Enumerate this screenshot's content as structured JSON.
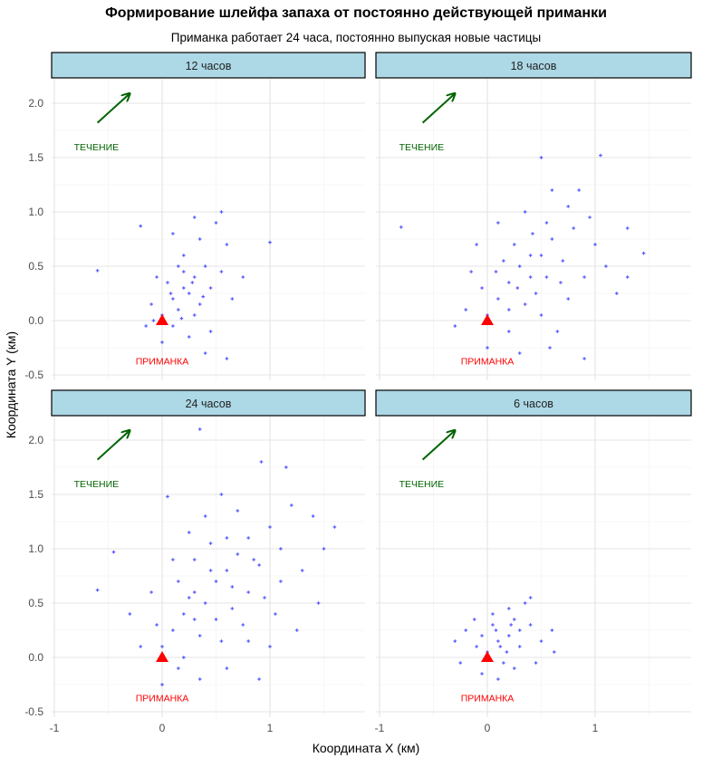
{
  "chart_data": {
    "type": "scatter",
    "title": "Формирование шлейфа запаха от постоянно действующей приманки",
    "subtitle": "Приманка работает 24 часа, постоянно выпуская новые частицы",
    "xlabel": "Координата X (км)",
    "ylabel": "Координата Y (км)",
    "xlim": [
      -1.02,
      1.88
    ],
    "ylim": [
      -0.55,
      2.225
    ],
    "x_ticks": [
      {
        "v": -1,
        "label": "-1"
      },
      {
        "v": 0,
        "label": "0"
      },
      {
        "v": 1,
        "label": "1"
      }
    ],
    "y_ticks": [
      {
        "v": 2,
        "label": "2.0"
      },
      {
        "v": 1.5,
        "label": "1.5"
      },
      {
        "v": 1,
        "label": "1.0"
      },
      {
        "v": 0.5,
        "label": "0.5"
      },
      {
        "v": 0,
        "label": "0.0"
      },
      {
        "v": -0.5,
        "label": "-0.5"
      }
    ],
    "grid": true,
    "colors": {
      "points": "#0000ff",
      "bait": "#ff0000",
      "current": "#006400",
      "strip": "#add8e6"
    },
    "annotations": {
      "current_label": "ТЕЧЕНИЕ",
      "current_label_pos": [
        -0.61,
        1.6
      ],
      "current_arrow": {
        "from": [
          -0.6,
          1.82
        ],
        "to": [
          -0.3,
          2.09
        ]
      },
      "bait_label": "ПРИМАНКА",
      "bait_label_pos": [
        0,
        -0.37
      ],
      "bait_point": [
        0,
        0
      ]
    },
    "facets": [
      {
        "label": "12 часов",
        "points": [
          [
            0.0,
            0.05
          ],
          [
            0.1,
            0.2
          ],
          [
            0.2,
            0.3
          ],
          [
            0.15,
            0.1
          ],
          [
            0.3,
            0.4
          ],
          [
            0.25,
            0.25
          ],
          [
            0.05,
            0.35
          ],
          [
            -0.1,
            0.15
          ],
          [
            0.35,
            0.15
          ],
          [
            0.4,
            0.5
          ],
          [
            0.2,
            0.6
          ],
          [
            0.1,
            -0.05
          ],
          [
            0.3,
            0.05
          ],
          [
            0.45,
            0.3
          ],
          [
            0.55,
            0.45
          ],
          [
            0.6,
            0.7
          ],
          [
            0.5,
            0.9
          ],
          [
            0.35,
            0.75
          ],
          [
            0.15,
            0.5
          ],
          [
            -0.05,
            0.4
          ],
          [
            -0.15,
            -0.05
          ],
          [
            0.0,
            -0.2
          ],
          [
            0.25,
            -0.15
          ],
          [
            0.4,
            -0.3
          ],
          [
            0.65,
            0.2
          ],
          [
            0.75,
            0.4
          ],
          [
            1.0,
            0.72
          ],
          [
            -0.6,
            0.46
          ],
          [
            -0.2,
            0.87
          ],
          [
            0.55,
            1.0
          ],
          [
            0.3,
            0.95
          ],
          [
            0.1,
            0.8
          ],
          [
            0.45,
            -0.1
          ],
          [
            0.2,
            0.45
          ],
          [
            0.08,
            0.25
          ],
          [
            0.28,
            0.35
          ],
          [
            0.38,
            0.22
          ],
          [
            -0.08,
            0.0
          ],
          [
            0.18,
            0.02
          ],
          [
            0.6,
            -0.35
          ]
        ]
      },
      {
        "label": "18 часов",
        "points": [
          [
            0.0,
            0.05
          ],
          [
            0.1,
            0.2
          ],
          [
            0.2,
            0.35
          ],
          [
            0.3,
            0.5
          ],
          [
            0.4,
            0.4
          ],
          [
            0.5,
            0.6
          ],
          [
            0.6,
            0.75
          ],
          [
            0.45,
            0.25
          ],
          [
            0.35,
            0.15
          ],
          [
            0.55,
            0.9
          ],
          [
            0.7,
            0.55
          ],
          [
            0.8,
            0.85
          ],
          [
            0.25,
            0.7
          ],
          [
            0.15,
            0.55
          ],
          [
            -0.05,
            0.3
          ],
          [
            -0.2,
            0.1
          ],
          [
            -0.3,
            -0.05
          ],
          [
            0.0,
            -0.25
          ],
          [
            0.2,
            -0.1
          ],
          [
            0.5,
            0.05
          ],
          [
            0.75,
            0.2
          ],
          [
            0.9,
            0.4
          ],
          [
            1.0,
            0.7
          ],
          [
            1.1,
            0.5
          ],
          [
            1.3,
            0.85
          ],
          [
            1.45,
            0.62
          ],
          [
            0.6,
            1.2
          ],
          [
            0.5,
            1.5
          ],
          [
            1.05,
            1.52
          ],
          [
            0.75,
            1.05
          ],
          [
            0.35,
            1.0
          ],
          [
            0.1,
            0.9
          ],
          [
            -0.1,
            0.7
          ],
          [
            -0.8,
            0.86
          ],
          [
            0.65,
            -0.1
          ],
          [
            0.9,
            -0.35
          ],
          [
            1.2,
            0.25
          ],
          [
            0.4,
            0.6
          ],
          [
            0.28,
            0.3
          ],
          [
            0.55,
            0.4
          ],
          [
            0.42,
            0.8
          ],
          [
            0.08,
            0.45
          ],
          [
            0.68,
            0.35
          ],
          [
            0.2,
            0.1
          ],
          [
            -0.15,
            0.45
          ],
          [
            0.85,
            1.2
          ],
          [
            1.3,
            0.4
          ],
          [
            0.58,
            -0.25
          ],
          [
            0.3,
            -0.3
          ],
          [
            0.95,
            0.95
          ]
        ]
      },
      {
        "label": "24 часов",
        "points": [
          [
            0.0,
            0.1
          ],
          [
            0.1,
            0.25
          ],
          [
            0.2,
            0.4
          ],
          [
            0.3,
            0.6
          ],
          [
            0.4,
            0.5
          ],
          [
            0.5,
            0.7
          ],
          [
            0.6,
            0.8
          ],
          [
            0.7,
            0.95
          ],
          [
            0.8,
            1.1
          ],
          [
            0.9,
            0.85
          ],
          [
            1.0,
            1.2
          ],
          [
            1.1,
            1.0
          ],
          [
            1.2,
            1.4
          ],
          [
            1.4,
            1.3
          ],
          [
            1.6,
            1.2
          ],
          [
            0.35,
            0.2
          ],
          [
            0.5,
            0.35
          ],
          [
            0.65,
            0.45
          ],
          [
            0.8,
            0.6
          ],
          [
            0.95,
            0.55
          ],
          [
            1.1,
            0.7
          ],
          [
            1.3,
            0.8
          ],
          [
            0.2,
            0.0
          ],
          [
            0.35,
            -0.2
          ],
          [
            0.6,
            -0.1
          ],
          [
            0.8,
            0.15
          ],
          [
            0.0,
            -0.25
          ],
          [
            -0.2,
            0.1
          ],
          [
            -0.3,
            0.4
          ],
          [
            -0.45,
            0.97
          ],
          [
            -0.6,
            0.62
          ],
          [
            -0.1,
            0.6
          ],
          [
            0.1,
            0.9
          ],
          [
            0.25,
            1.15
          ],
          [
            0.05,
            1.48
          ],
          [
            0.55,
            1.5
          ],
          [
            0.35,
            2.1
          ],
          [
            0.92,
            1.8
          ],
          [
            1.15,
            1.75
          ],
          [
            0.7,
            1.35
          ],
          [
            0.45,
            1.05
          ],
          [
            0.15,
            0.7
          ],
          [
            0.3,
            0.35
          ],
          [
            0.45,
            0.8
          ],
          [
            0.75,
            0.3
          ],
          [
            1.05,
            0.4
          ],
          [
            1.25,
            0.25
          ],
          [
            1.45,
            0.5
          ],
          [
            1.5,
            1.0
          ],
          [
            0.9,
            -0.2
          ],
          [
            0.55,
            0.15
          ],
          [
            0.25,
            0.55
          ],
          [
            0.65,
            0.65
          ],
          [
            0.85,
            0.9
          ],
          [
            0.4,
            1.3
          ],
          [
            -0.05,
            0.3
          ],
          [
            0.15,
            -0.1
          ],
          [
            1.0,
            0.1
          ],
          [
            0.6,
            1.1
          ],
          [
            0.3,
            0.9
          ]
        ]
      },
      {
        "label": "6 часов",
        "points": [
          [
            0.0,
            0.05
          ],
          [
            0.1,
            0.15
          ],
          [
            0.2,
            0.2
          ],
          [
            0.05,
            0.3
          ],
          [
            -0.1,
            0.1
          ],
          [
            0.15,
            -0.05
          ],
          [
            0.25,
            0.35
          ],
          [
            0.3,
            0.1
          ],
          [
            -0.05,
            -0.15
          ],
          [
            0.2,
            0.45
          ],
          [
            0.35,
            0.5
          ],
          [
            0.4,
            0.3
          ],
          [
            0.5,
            0.15
          ],
          [
            0.6,
            0.25
          ],
          [
            0.62,
            0.05
          ],
          [
            -0.2,
            0.25
          ],
          [
            -0.3,
            0.15
          ],
          [
            -0.25,
            -0.05
          ],
          [
            0.1,
            -0.2
          ],
          [
            0.25,
            -0.1
          ],
          [
            0.08,
            0.25
          ],
          [
            0.18,
            0.05
          ],
          [
            0.4,
            0.55
          ],
          [
            0.05,
            0.4
          ],
          [
            -0.12,
            0.35
          ],
          [
            0.3,
            0.25
          ],
          [
            0.12,
            0.1
          ],
          [
            0.22,
            0.3
          ],
          [
            0.45,
            -0.05
          ],
          [
            -0.05,
            0.2
          ]
        ]
      }
    ]
  }
}
